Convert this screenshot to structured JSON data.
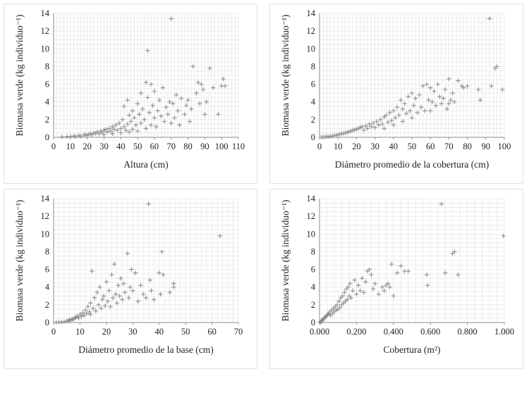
{
  "colors": {
    "marker": "#8e8e8e",
    "grid": "#e4e4e4",
    "axis": "#8c8c8c",
    "text": "#222222"
  },
  "chart_data": [
    {
      "type": "scatter",
      "marker": "plus",
      "xlabel": "Altura (cm)",
      "ylabel": "Biomasa verde (kg individuo⁻¹)",
      "xlim": [
        0,
        110
      ],
      "ylim": [
        0,
        14
      ],
      "xticks": [
        "0",
        "10",
        "20",
        "30",
        "40",
        "50",
        "60",
        "70",
        "80",
        "90",
        "100",
        "110"
      ],
      "yticks": [
        "0",
        "2",
        "4",
        "6",
        "8",
        "10",
        "12",
        "14"
      ],
      "grid": true,
      "points": [
        [
          5,
          0.05
        ],
        [
          8,
          0.08
        ],
        [
          10,
          0.1
        ],
        [
          12,
          0.15
        ],
        [
          13,
          0.1
        ],
        [
          15,
          0.2
        ],
        [
          16,
          0.12
        ],
        [
          18,
          0.25
        ],
        [
          19,
          0.3
        ],
        [
          20,
          0.2
        ],
        [
          21,
          0.35
        ],
        [
          22,
          0.4
        ],
        [
          23,
          0.3
        ],
        [
          24,
          0.5
        ],
        [
          25,
          0.45
        ],
        [
          26,
          0.6
        ],
        [
          27,
          0.4
        ],
        [
          28,
          0.7
        ],
        [
          29,
          0.55
        ],
        [
          30,
          0.8
        ],
        [
          30,
          0.3
        ],
        [
          31,
          0.9
        ],
        [
          32,
          0.6
        ],
        [
          33,
          1.0
        ],
        [
          34,
          0.7
        ],
        [
          35,
          1.2
        ],
        [
          35,
          0.4
        ],
        [
          36,
          0.9
        ],
        [
          37,
          1.4
        ],
        [
          38,
          0.8
        ],
        [
          39,
          1.6
        ],
        [
          40,
          1.0
        ],
        [
          40,
          0.5
        ],
        [
          41,
          2.0
        ],
        [
          42,
          1.2
        ],
        [
          42,
          3.5
        ],
        [
          43,
          0.8
        ],
        [
          44,
          4.2
        ],
        [
          44,
          1.5
        ],
        [
          45,
          2.5
        ],
        [
          45,
          0.6
        ],
        [
          46,
          1.8
        ],
        [
          47,
          3.0
        ],
        [
          47,
          0.9
        ],
        [
          48,
          2.2
        ],
        [
          49,
          1.4
        ],
        [
          50,
          3.8
        ],
        [
          50,
          0.7
        ],
        [
          51,
          2.6
        ],
        [
          52,
          1.6
        ],
        [
          52,
          5.0
        ],
        [
          53,
          3.2
        ],
        [
          54,
          2.0
        ],
        [
          55,
          6.2
        ],
        [
          55,
          1.0
        ],
        [
          56,
          9.8
        ],
        [
          56,
          4.5
        ],
        [
          57,
          2.8
        ],
        [
          58,
          6.0
        ],
        [
          58,
          1.4
        ],
        [
          59,
          3.6
        ],
        [
          60,
          2.2
        ],
        [
          60,
          5.2
        ],
        [
          61,
          1.2
        ],
        [
          62,
          3.0
        ],
        [
          63,
          4.2
        ],
        [
          64,
          2.4
        ],
        [
          65,
          5.6
        ],
        [
          66,
          1.8
        ],
        [
          67,
          3.4
        ],
        [
          68,
          2.6
        ],
        [
          69,
          4.0
        ],
        [
          70,
          13.4
        ],
        [
          70,
          1.6
        ],
        [
          71,
          3.8
        ],
        [
          72,
          2.2
        ],
        [
          73,
          4.8
        ],
        [
          74,
          3.0
        ],
        [
          75,
          1.4
        ],
        [
          76,
          4.4
        ],
        [
          78,
          2.6
        ],
        [
          79,
          3.6
        ],
        [
          80,
          4.2
        ],
        [
          81,
          1.8
        ],
        [
          82,
          3.2
        ],
        [
          83,
          8.0
        ],
        [
          85,
          5.0
        ],
        [
          86,
          6.2
        ],
        [
          87,
          3.8
        ],
        [
          88,
          6.0
        ],
        [
          89,
          5.4
        ],
        [
          90,
          2.6
        ],
        [
          91,
          4.0
        ],
        [
          93,
          7.8
        ],
        [
          95,
          5.6
        ],
        [
          98,
          2.6
        ],
        [
          100,
          5.8
        ],
        [
          101,
          6.6
        ],
        [
          102,
          5.8
        ]
      ]
    },
    {
      "type": "scatter",
      "marker": "plus",
      "xlabel": "Diámetro promedio de la cobertura (cm)",
      "ylabel": "Biomasa verde (kg individuo⁻¹)",
      "xlim": [
        0,
        100
      ],
      "ylim": [
        0,
        14
      ],
      "xticks": [
        "0",
        "10",
        "20",
        "30",
        "40",
        "50",
        "60",
        "70",
        "80",
        "90",
        "100"
      ],
      "yticks": [
        "0",
        "2",
        "4",
        "6",
        "8",
        "10",
        "12",
        "14"
      ],
      "grid": true,
      "points": [
        [
          1,
          0.02
        ],
        [
          2,
          0.03
        ],
        [
          3,
          0.05
        ],
        [
          4,
          0.08
        ],
        [
          5,
          0.1
        ],
        [
          6,
          0.12
        ],
        [
          7,
          0.15
        ],
        [
          8,
          0.2
        ],
        [
          9,
          0.22
        ],
        [
          10,
          0.3
        ],
        [
          11,
          0.35
        ],
        [
          12,
          0.4
        ],
        [
          13,
          0.45
        ],
        [
          14,
          0.5
        ],
        [
          15,
          0.55
        ],
        [
          16,
          0.65
        ],
        [
          17,
          0.7
        ],
        [
          18,
          0.8
        ],
        [
          19,
          0.85
        ],
        [
          20,
          0.9
        ],
        [
          21,
          1.0
        ],
        [
          22,
          1.1
        ],
        [
          23,
          1.2
        ],
        [
          24,
          0.8
        ],
        [
          25,
          1.3
        ],
        [
          26,
          1.0
        ],
        [
          27,
          1.5
        ],
        [
          28,
          1.2
        ],
        [
          29,
          1.6
        ],
        [
          30,
          1.1
        ],
        [
          31,
          1.8
        ],
        [
          32,
          1.4
        ],
        [
          33,
          2.0
        ],
        [
          34,
          1.5
        ],
        [
          35,
          2.3
        ],
        [
          35,
          1.0
        ],
        [
          36,
          2.5
        ],
        [
          37,
          1.7
        ],
        [
          38,
          2.8
        ],
        [
          39,
          1.9
        ],
        [
          40,
          3.0
        ],
        [
          40,
          1.4
        ],
        [
          41,
          2.2
        ],
        [
          42,
          3.4
        ],
        [
          43,
          2.5
        ],
        [
          44,
          4.2
        ],
        [
          45,
          3.2
        ],
        [
          45,
          1.8
        ],
        [
          46,
          3.8
        ],
        [
          47,
          2.7
        ],
        [
          48,
          4.6
        ],
        [
          49,
          3.0
        ],
        [
          50,
          5.0
        ],
        [
          50,
          2.2
        ],
        [
          51,
          3.6
        ],
        [
          52,
          4.4
        ],
        [
          53,
          2.8
        ],
        [
          54,
          4.8
        ],
        [
          55,
          3.4
        ],
        [
          56,
          5.8
        ],
        [
          57,
          3.0
        ],
        [
          58,
          6.0
        ],
        [
          59,
          4.2
        ],
        [
          60,
          5.6
        ],
        [
          60,
          3.0
        ],
        [
          61,
          4.0
        ],
        [
          62,
          5.2
        ],
        [
          63,
          3.6
        ],
        [
          64,
          6.0
        ],
        [
          65,
          4.6
        ],
        [
          66,
          3.8
        ],
        [
          67,
          4.4
        ],
        [
          68,
          5.4
        ],
        [
          69,
          3.2
        ],
        [
          70,
          6.6
        ],
        [
          70,
          3.8
        ],
        [
          71,
          4.2
        ],
        [
          72,
          5.0
        ],
        [
          73,
          4.0
        ],
        [
          75,
          6.4
        ],
        [
          77,
          5.8
        ],
        [
          78,
          5.6
        ],
        [
          80,
          5.8
        ],
        [
          86,
          5.4
        ],
        [
          87,
          4.2
        ],
        [
          92,
          13.4
        ],
        [
          93,
          5.8
        ],
        [
          95,
          7.8
        ],
        [
          96,
          8.0
        ],
        [
          99,
          5.4
        ]
      ]
    },
    {
      "type": "scatter",
      "marker": "plus",
      "xlabel": "Diámetro promedio de la base (cm)",
      "ylabel": "Biomasa verde (kg individuo⁻¹)",
      "xlim": [
        0,
        70
      ],
      "ylim": [
        0,
        14
      ],
      "xticks": [
        "0",
        "10",
        "20",
        "30",
        "40",
        "50",
        "60",
        "70"
      ],
      "yticks": [
        "0",
        "2",
        "4",
        "6",
        "8",
        "10",
        "12",
        "14"
      ],
      "grid": true,
      "points": [
        [
          1,
          0.02
        ],
        [
          2,
          0.04
        ],
        [
          3,
          0.06
        ],
        [
          4,
          0.1
        ],
        [
          5,
          0.15
        ],
        [
          5.5,
          0.2
        ],
        [
          6,
          0.3
        ],
        [
          6.5,
          0.25
        ],
        [
          7,
          0.4
        ],
        [
          7.5,
          0.35
        ],
        [
          8,
          0.5
        ],
        [
          8.5,
          0.6
        ],
        [
          9,
          0.7
        ],
        [
          9.5,
          0.5
        ],
        [
          10,
          0.9
        ],
        [
          10.5,
          0.7
        ],
        [
          11,
          1.1
        ],
        [
          11.5,
          0.8
        ],
        [
          12,
          1.4
        ],
        [
          12.5,
          1.0
        ],
        [
          13,
          1.8
        ],
        [
          13.5,
          1.2
        ],
        [
          14,
          2.2
        ],
        [
          14,
          0.9
        ],
        [
          14.5,
          5.8
        ],
        [
          15,
          1.6
        ],
        [
          15.5,
          2.8
        ],
        [
          16,
          1.3
        ],
        [
          16.5,
          3.4
        ],
        [
          17,
          2.0
        ],
        [
          17.5,
          4.0
        ],
        [
          18,
          1.6
        ],
        [
          18.5,
          2.6
        ],
        [
          19,
          3.0
        ],
        [
          19.5,
          1.9
        ],
        [
          20,
          4.6
        ],
        [
          20.5,
          2.4
        ],
        [
          21,
          3.6
        ],
        [
          21.5,
          1.8
        ],
        [
          22,
          5.4
        ],
        [
          22.5,
          2.8
        ],
        [
          23,
          6.6
        ],
        [
          23.5,
          3.2
        ],
        [
          24,
          2.2
        ],
        [
          24.5,
          4.2
        ],
        [
          25,
          3.0
        ],
        [
          25.5,
          5.0
        ],
        [
          26,
          2.6
        ],
        [
          26.5,
          4.4
        ],
        [
          27,
          3.4
        ],
        [
          28,
          7.8
        ],
        [
          28.5,
          2.8
        ],
        [
          29,
          4.0
        ],
        [
          29.5,
          6.0
        ],
        [
          30,
          3.6
        ],
        [
          31,
          5.6
        ],
        [
          32,
          2.4
        ],
        [
          33,
          4.2
        ],
        [
          34,
          3.2
        ],
        [
          35,
          2.8
        ],
        [
          36,
          13.4
        ],
        [
          36.5,
          4.8
        ],
        [
          37,
          3.6
        ],
        [
          38,
          2.6
        ],
        [
          40,
          5.6
        ],
        [
          40.5,
          3.2
        ],
        [
          41,
          8.0
        ],
        [
          41.5,
          5.4
        ],
        [
          44,
          3.4
        ],
        [
          45.5,
          4.4
        ],
        [
          45.5,
          4.0
        ],
        [
          63,
          9.8
        ]
      ]
    },
    {
      "type": "scatter",
      "marker": "plus",
      "xlabel": "Cobertura (m²)",
      "ylabel": "Biomasa verde (kg individuo⁻¹)",
      "xlim": [
        0,
        1
      ],
      "ylim": [
        0,
        14
      ],
      "xticks": [
        "0.000",
        "0.200",
        "0.400",
        "0.600",
        "0.800",
        "1.000"
      ],
      "yticks": [
        "0",
        "2",
        "4",
        "6",
        "8",
        "10",
        "12",
        "14"
      ],
      "grid": true,
      "points": [
        [
          0.002,
          0.02
        ],
        [
          0.004,
          0.05
        ],
        [
          0.006,
          0.08
        ],
        [
          0.008,
          0.1
        ],
        [
          0.01,
          0.15
        ],
        [
          0.012,
          0.2
        ],
        [
          0.015,
          0.25
        ],
        [
          0.018,
          0.3
        ],
        [
          0.02,
          0.4
        ],
        [
          0.025,
          0.5
        ],
        [
          0.03,
          0.6
        ],
        [
          0.035,
          0.7
        ],
        [
          0.04,
          0.8
        ],
        [
          0.045,
          0.9
        ],
        [
          0.05,
          1.0
        ],
        [
          0.055,
          1.2
        ],
        [
          0.06,
          0.8
        ],
        [
          0.065,
          1.4
        ],
        [
          0.07,
          1.0
        ],
        [
          0.075,
          1.6
        ],
        [
          0.08,
          1.2
        ],
        [
          0.085,
          1.8
        ],
        [
          0.09,
          1.4
        ],
        [
          0.095,
          2.0
        ],
        [
          0.1,
          1.5
        ],
        [
          0.105,
          2.4
        ],
        [
          0.11,
          1.7
        ],
        [
          0.115,
          2.8
        ],
        [
          0.12,
          2.0
        ],
        [
          0.125,
          3.0
        ],
        [
          0.13,
          2.2
        ],
        [
          0.135,
          3.4
        ],
        [
          0.14,
          2.4
        ],
        [
          0.145,
          3.8
        ],
        [
          0.15,
          2.6
        ],
        [
          0.155,
          4.0
        ],
        [
          0.16,
          3.0
        ],
        [
          0.165,
          4.4
        ],
        [
          0.17,
          2.8
        ],
        [
          0.18,
          3.6
        ],
        [
          0.19,
          4.8
        ],
        [
          0.2,
          3.2
        ],
        [
          0.21,
          4.2
        ],
        [
          0.22,
          3.6
        ],
        [
          0.23,
          5.0
        ],
        [
          0.24,
          3.4
        ],
        [
          0.25,
          4.6
        ],
        [
          0.26,
          5.8
        ],
        [
          0.27,
          6.0
        ],
        [
          0.28,
          5.4
        ],
        [
          0.29,
          3.8
        ],
        [
          0.3,
          4.4
        ],
        [
          0.32,
          3.2
        ],
        [
          0.34,
          4.0
        ],
        [
          0.35,
          3.6
        ],
        [
          0.36,
          4.2
        ],
        [
          0.37,
          4.4
        ],
        [
          0.38,
          4.0
        ],
        [
          0.39,
          6.6
        ],
        [
          0.4,
          3.0
        ],
        [
          0.42,
          5.6
        ],
        [
          0.44,
          6.4
        ],
        [
          0.46,
          5.8
        ],
        [
          0.48,
          5.8
        ],
        [
          0.58,
          5.4
        ],
        [
          0.585,
          4.2
        ],
        [
          0.66,
          13.4
        ],
        [
          0.68,
          5.6
        ],
        [
          0.72,
          7.8
        ],
        [
          0.73,
          8.0
        ],
        [
          0.75,
          5.4
        ],
        [
          0.995,
          9.8
        ]
      ]
    }
  ]
}
